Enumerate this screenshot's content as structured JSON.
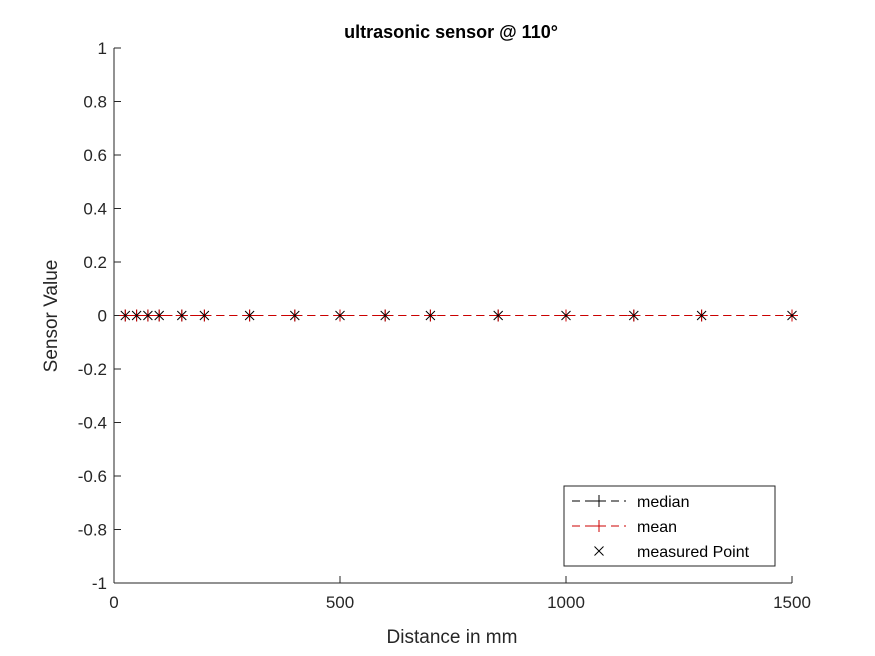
{
  "chart_data": {
    "type": "line",
    "title": "ultrasonic sensor @ 110°",
    "xlabel": "Distance in mm",
    "ylabel": "Sensor Value",
    "xlim": [
      0,
      1500
    ],
    "ylim": [
      -1,
      1
    ],
    "xticks": [
      "0",
      "500",
      "1000",
      "1500"
    ],
    "yticks": [
      "-1",
      "-0.8",
      "-0.6",
      "-0.4",
      "-0.2",
      "0",
      "0.2",
      "0.4",
      "0.6",
      "0.8",
      "1"
    ],
    "grid": false,
    "legend_position": "bottom-right",
    "x": [
      25,
      50,
      75,
      100,
      150,
      200,
      300,
      400,
      500,
      600,
      700,
      850,
      1000,
      1150,
      1300,
      1500
    ],
    "series": [
      {
        "name": "median",
        "color": "#000000",
        "style": "dashed",
        "marker": "plus",
        "values": [
          0,
          0,
          0,
          0,
          0,
          0,
          0,
          0,
          0,
          0,
          0,
          0,
          0,
          0,
          0,
          0
        ]
      },
      {
        "name": "mean",
        "color": "#cc0000",
        "style": "dashed",
        "marker": "plus",
        "values": [
          0,
          0,
          0,
          0,
          0,
          0,
          0,
          0,
          0,
          0,
          0,
          0,
          0,
          0,
          0,
          0
        ]
      },
      {
        "name": "measured Point",
        "color": "#000000",
        "style": "none",
        "marker": "x",
        "values": [
          0,
          0,
          0,
          0,
          0,
          0,
          0,
          0,
          0,
          0,
          0,
          0,
          0,
          0,
          0,
          0
        ]
      }
    ]
  }
}
